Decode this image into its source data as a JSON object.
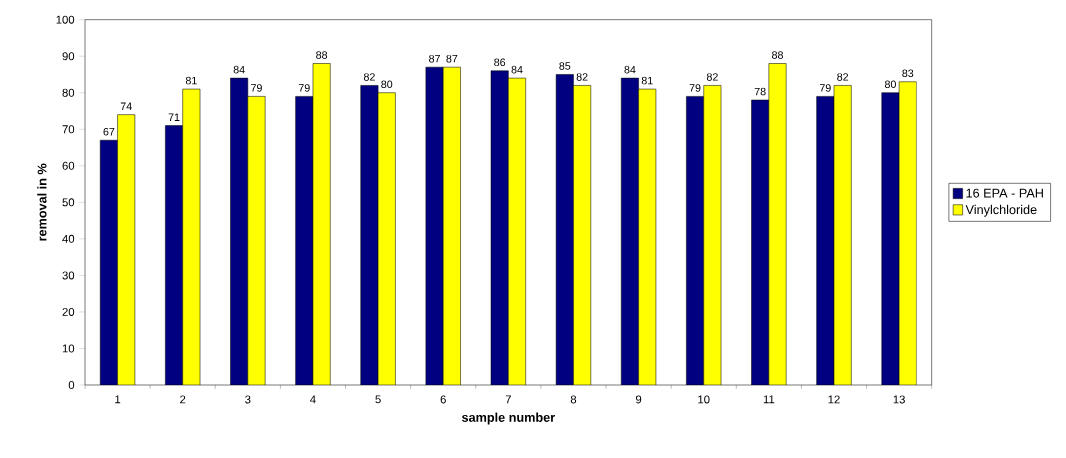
{
  "chart_data": {
    "type": "bar",
    "xlabel": "sample number",
    "ylabel": "removal in %",
    "categories": [
      "1",
      "2",
      "3",
      "4",
      "5",
      "6",
      "7",
      "8",
      "9",
      "10",
      "11",
      "12",
      "13"
    ],
    "series": [
      {
        "name": "16 EPA - PAH",
        "color": "#000080",
        "values": [
          67,
          71,
          84,
          79,
          82,
          87,
          86,
          85,
          84,
          79,
          78,
          79,
          80
        ]
      },
      {
        "name": "Vinylchloride",
        "color": "#ffff00",
        "values": [
          74,
          81,
          79,
          88,
          80,
          87,
          84,
          82,
          81,
          82,
          88,
          82,
          83
        ]
      }
    ],
    "ylim": [
      0,
      100
    ],
    "yticks": [
      0,
      10,
      20,
      30,
      40,
      50,
      60,
      70,
      80,
      90,
      100
    ],
    "grid": false,
    "legend": "right",
    "data_labels": true
  }
}
